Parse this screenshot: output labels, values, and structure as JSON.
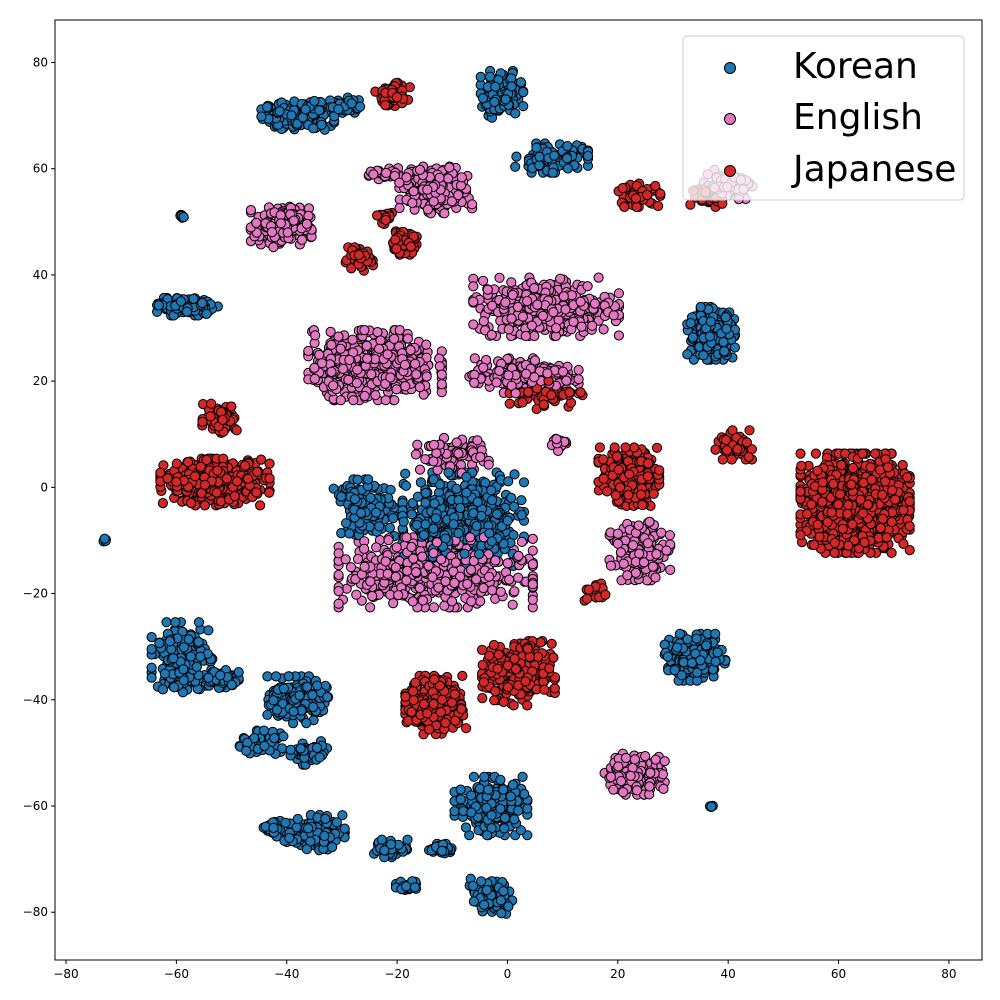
{
  "chart_data": {
    "type": "scatter",
    "title": "",
    "xlabel": "",
    "ylabel": "",
    "xlim": [
      -82,
      86
    ],
    "ylim": [
      -89,
      88
    ],
    "xticks": [
      -80,
      -60,
      -40,
      -20,
      0,
      20,
      40,
      60,
      80
    ],
    "yticks": [
      -80,
      -60,
      -40,
      -20,
      0,
      20,
      40,
      60,
      80
    ],
    "xtick_labels": [
      "−80",
      "−60",
      "−40",
      "−20",
      "0",
      "20",
      "40",
      "60",
      "80"
    ],
    "ytick_labels": [
      "−80",
      "−60",
      "−40",
      "−20",
      "0",
      "20",
      "40",
      "60",
      "80"
    ],
    "grid": false,
    "legend_position": "top-right",
    "marker": "circle",
    "marker_edge_color": "#000000",
    "series": [
      {
        "name": "Korean",
        "color": "#1f77b4",
        "clusters": [
          {
            "center": [
              -38,
              70
            ],
            "spread": [
              6,
              2.5
            ],
            "n": 180
          },
          {
            "center": [
              -30,
              72
            ],
            "spread": [
              3,
              1.5
            ],
            "n": 60
          },
          {
            "center": [
              -1,
              74
            ],
            "spread": [
              3.5,
              4
            ],
            "n": 140
          },
          {
            "center": [
              8,
              62
            ],
            "spread": [
              6,
              2.5
            ],
            "n": 120
          },
          {
            "center": [
              -58,
              34
            ],
            "spread": [
              5,
              1.5
            ],
            "n": 130
          },
          {
            "center": [
              -59,
              51
            ],
            "spread": [
              0.5,
              0.5
            ],
            "n": 8
          },
          {
            "center": [
              37,
              29
            ],
            "spread": [
              4,
              4.5
            ],
            "n": 220
          },
          {
            "center": [
              -8,
              -6
            ],
            "spread": [
              10,
              8
            ],
            "n": 520
          },
          {
            "center": [
              -26,
              -4
            ],
            "spread": [
              5,
              5
            ],
            "n": 150
          },
          {
            "center": [
              34,
              -32
            ],
            "spread": [
              5,
              4
            ],
            "n": 220
          },
          {
            "center": [
              -59,
              -32
            ],
            "spread": [
              5,
              6
            ],
            "n": 200
          },
          {
            "center": [
              -52,
              -36
            ],
            "spread": [
              3,
              2
            ],
            "n": 70
          },
          {
            "center": [
              -38,
              -40
            ],
            "spread": [
              5,
              4
            ],
            "n": 170
          },
          {
            "center": [
              -45,
              -48
            ],
            "spread": [
              4,
              2
            ],
            "n": 60
          },
          {
            "center": [
              -36,
              -50
            ],
            "spread": [
              3,
              2
            ],
            "n": 60
          },
          {
            "center": [
              -3,
              -60
            ],
            "spread": [
              6,
              5
            ],
            "n": 230
          },
          {
            "center": [
              -3,
              -77
            ],
            "spread": [
              3.5,
              3
            ],
            "n": 100
          },
          {
            "center": [
              -35,
              -65
            ],
            "spread": [
              5,
              3
            ],
            "n": 110
          },
          {
            "center": [
              -42,
              -64
            ],
            "spread": [
              2,
              2
            ],
            "n": 30
          },
          {
            "center": [
              -21,
              -68
            ],
            "spread": [
              3,
              1.5
            ],
            "n": 55
          },
          {
            "center": [
              -18,
              -75
            ],
            "spread": [
              2,
              1
            ],
            "n": 30
          },
          {
            "center": [
              -12,
              -68
            ],
            "spread": [
              2,
              1
            ],
            "n": 25
          },
          {
            "center": [
              -73,
              -10
            ],
            "spread": [
              0.3,
              0.3
            ],
            "n": 6
          },
          {
            "center": [
              37,
              -60
            ],
            "spread": [
              0.3,
              0.3
            ],
            "n": 5
          }
        ]
      },
      {
        "name": "English",
        "color": "#e377c2",
        "clusters": [
          {
            "center": [
              -13,
              56
            ],
            "spread": [
              6,
              4
            ],
            "n": 250
          },
          {
            "center": [
              -22,
              59
            ],
            "spread": [
              3,
              1
            ],
            "n": 40
          },
          {
            "center": [
              -41,
              49
            ],
            "spread": [
              5,
              3.5
            ],
            "n": 200
          },
          {
            "center": [
              7,
              34
            ],
            "spread": [
              12,
              5
            ],
            "n": 450
          },
          {
            "center": [
              3,
              21
            ],
            "spread": [
              9,
              3
            ],
            "n": 200
          },
          {
            "center": [
              -24,
              23
            ],
            "spread": [
              11,
              6
            ],
            "n": 520
          },
          {
            "center": [
              -13,
              -16
            ],
            "spread": [
              16,
              6
            ],
            "n": 650
          },
          {
            "center": [
              -10,
              6
            ],
            "spread": [
              6,
              3
            ],
            "n": 90
          },
          {
            "center": [
              24,
              -12
            ],
            "spread": [
              5,
              5
            ],
            "n": 180
          },
          {
            "center": [
              23,
              -54
            ],
            "spread": [
              5,
              3.5
            ],
            "n": 180
          },
          {
            "center": [
              40,
              57
            ],
            "spread": [
              4,
              2.5
            ],
            "n": 100
          },
          {
            "center": [
              9,
              8
            ],
            "spread": [
              1.5,
              1.5
            ],
            "n": 20
          }
        ]
      },
      {
        "name": "Japanese",
        "color": "#d62728",
        "clusters": [
          {
            "center": [
              -21,
              74
            ],
            "spread": [
              3,
              2
            ],
            "n": 70
          },
          {
            "center": [
              -27,
              43
            ],
            "spread": [
              2.5,
              2
            ],
            "n": 50
          },
          {
            "center": [
              -19,
              46
            ],
            "spread": [
              2.5,
              2
            ],
            "n": 50
          },
          {
            "center": [
              -22,
              51
            ],
            "spread": [
              1.5,
              1.5
            ],
            "n": 20
          },
          {
            "center": [
              24,
              55
            ],
            "spread": [
              3.5,
              2
            ],
            "n": 60
          },
          {
            "center": [
              37,
              55
            ],
            "spread": [
              3.5,
              2
            ],
            "n": 60
          },
          {
            "center": [
              -52,
              13
            ],
            "spread": [
              3,
              2.5
            ],
            "n": 70
          },
          {
            "center": [
              -53,
              1
            ],
            "spread": [
              9,
              4
            ],
            "n": 380
          },
          {
            "center": [
              63,
              -3
            ],
            "spread": [
              9,
              8.5
            ],
            "n": 1100
          },
          {
            "center": [
              41,
              8
            ],
            "spread": [
              3,
              2.5
            ],
            "n": 60
          },
          {
            "center": [
              22,
              2
            ],
            "spread": [
              5,
              5
            ],
            "n": 260
          },
          {
            "center": [
              -13,
              -41
            ],
            "spread": [
              5,
              5
            ],
            "n": 280
          },
          {
            "center": [
              2,
              -35
            ],
            "spread": [
              6,
              5.5
            ],
            "n": 310
          },
          {
            "center": [
              7,
              18
            ],
            "spread": [
              6,
              3
            ],
            "n": 60
          },
          {
            "center": [
              16,
              -20
            ],
            "spread": [
              2,
              2
            ],
            "n": 15
          }
        ]
      }
    ]
  }
}
